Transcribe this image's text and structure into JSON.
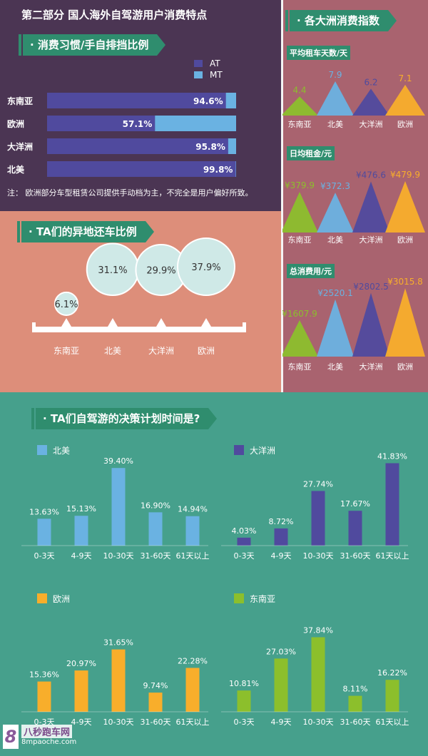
{
  "header": {
    "title": "第二部分 国人海外自驾游用户消费特点"
  },
  "section1": {
    "title": "消费习惯/手自排挡比例",
    "legend": [
      "AT",
      "MT"
    ],
    "note": "注：  欧洲部分车型租赁公司提供手动档为主，不完全是用户偏好所致。"
  },
  "section2": {
    "title": "TA们的异地还车比例"
  },
  "section3": {
    "title": "各大洲消费指数",
    "sub1": "平均租车天数/天",
    "sub2": "日均租金/元",
    "sub3": "总消费用/元"
  },
  "section4": {
    "title": "TA们自驾游的决策计划时间是?"
  },
  "watermark": {
    "text": "八秒跑车网",
    "url": "8mpaoche.com"
  },
  "colors": {
    "top_bg": "#4b3553",
    "pink_bg": "#a9636f",
    "salmon_bg": "#dd8e7a",
    "green_bg": "#46a08c",
    "tag": "#2f8d6e",
    "at": "#504a9e",
    "mt": "#6ab2e2",
    "lime": "#8cbf2c",
    "sky": "#6ab2e2",
    "indigo": "#504a9e",
    "orange": "#f8ae2b",
    "circle": "#cfe9e7"
  },
  "chart_data": [
    {
      "type": "bar",
      "title": "消费习惯/手自排挡比例",
      "categories": [
        "东南亚",
        "欧洲",
        "大洋洲",
        "北美"
      ],
      "series": [
        {
          "name": "AT",
          "values": [
            94.6,
            57.1,
            95.8,
            99.8
          ]
        },
        {
          "name": "MT",
          "values": [
            5.4,
            42.9,
            4.2,
            0.2
          ]
        }
      ],
      "labels": [
        "94.6%",
        "57.1%",
        "95.8%",
        "99.8%"
      ],
      "orientation": "horizontal",
      "stacked": true
    },
    {
      "type": "bubble",
      "title": "TA们的异地还车比例",
      "categories": [
        "东南亚",
        "北美",
        "大洋洲",
        "欧洲"
      ],
      "values": [
        6.1,
        31.1,
        29.9,
        37.9
      ],
      "labels": [
        "6.1%",
        "31.1%",
        "29.9%",
        "37.9%"
      ]
    },
    {
      "type": "bar",
      "title": "平均租车天数/天",
      "categories": [
        "东南亚",
        "北美",
        "大洋洲",
        "欧洲"
      ],
      "values": [
        4.4,
        7.9,
        6.2,
        7.1
      ],
      "labels": [
        "4.4",
        "7.9",
        "6.2",
        "7.1"
      ],
      "colors": [
        "#8cbf2c",
        "#6ab2e2",
        "#504a9e",
        "#f8ae2b"
      ]
    },
    {
      "type": "bar",
      "title": "日均租金/元",
      "categories": [
        "东南亚",
        "北美",
        "大洋洲",
        "欧洲"
      ],
      "values": [
        379.9,
        372.3,
        476.6,
        479.9
      ],
      "labels": [
        "¥379.9",
        "¥372.3",
        "¥476.6",
        "¥479.9"
      ],
      "colors": [
        "#8cbf2c",
        "#6ab2e2",
        "#504a9e",
        "#f8ae2b"
      ]
    },
    {
      "type": "bar",
      "title": "总消费用/元",
      "categories": [
        "东南亚",
        "北美",
        "大洋洲",
        "欧洲"
      ],
      "values": [
        1607.9,
        2520.1,
        2802.5,
        3015.8
      ],
      "labels": [
        "¥1607.9",
        "¥2520.1",
        "¥2802.5",
        "¥3015.8"
      ],
      "colors": [
        "#8cbf2c",
        "#6ab2e2",
        "#504a9e",
        "#f8ae2b"
      ]
    },
    {
      "type": "bar",
      "title": "北美",
      "categories": [
        "0-3天",
        "4-9天",
        "10-30天",
        "31-60天",
        "61天以上"
      ],
      "values": [
        13.63,
        15.13,
        39.4,
        16.9,
        14.94
      ],
      "labels": [
        "13.63%",
        "15.13%",
        "39.40%",
        "16.90%",
        "14.94%"
      ],
      "color": "#6ab2e2"
    },
    {
      "type": "bar",
      "title": "大洋洲",
      "categories": [
        "0-3天",
        "4-9天",
        "10-30天",
        "31-60天",
        "61天以上"
      ],
      "values": [
        4.03,
        8.72,
        27.74,
        17.67,
        41.83
      ],
      "labels": [
        "4.03%",
        "8.72%",
        "27.74%",
        "17.67%",
        "41.83%"
      ],
      "color": "#504a9e"
    },
    {
      "type": "bar",
      "title": "欧洲",
      "categories": [
        "0-3天",
        "4-9天",
        "10-30天",
        "31-60天",
        "61天以上"
      ],
      "values": [
        15.36,
        20.97,
        31.65,
        9.74,
        22.28
      ],
      "labels": [
        "15.36%",
        "20.97%",
        "31.65%",
        "9.74%",
        "22.28%"
      ],
      "color": "#f8ae2b"
    },
    {
      "type": "bar",
      "title": "东南亚",
      "categories": [
        "0-3天",
        "4-9天",
        "10-30天",
        "31-60天",
        "61天以上"
      ],
      "values": [
        10.81,
        27.03,
        37.84,
        8.11,
        16.22
      ],
      "labels": [
        "10.81%",
        "27.03%",
        "37.84%",
        "8.11%",
        "16.22%"
      ],
      "color": "#8cbf2c"
    }
  ]
}
